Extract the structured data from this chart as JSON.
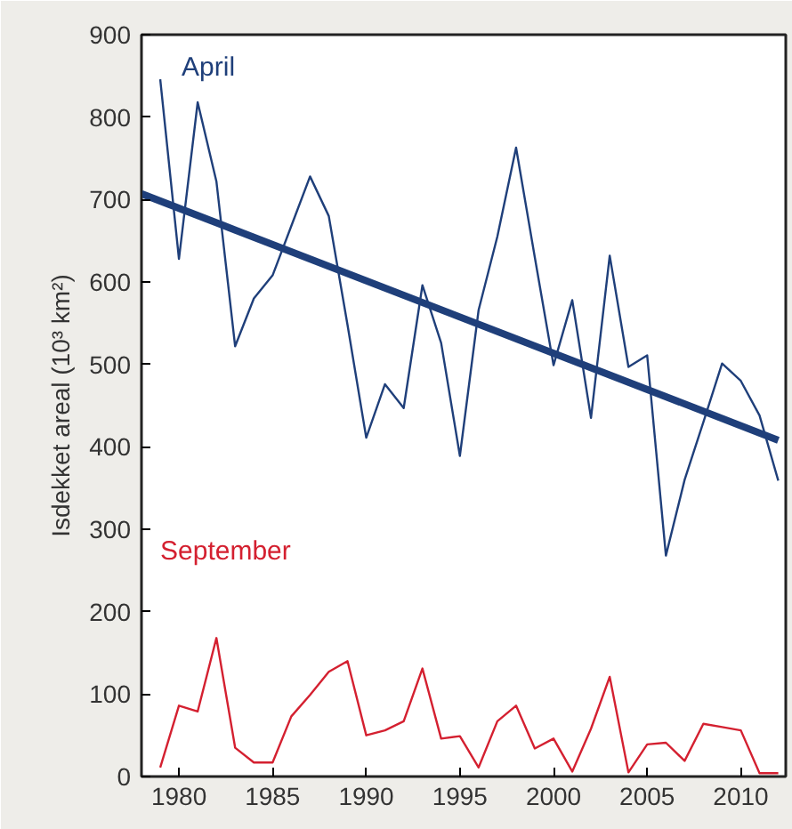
{
  "chart_data": {
    "type": "line",
    "ylabel": "Isdekket areal (10³ km²)",
    "xlim": [
      1978,
      2012.4
    ],
    "ylim": [
      0,
      900
    ],
    "xticks": [
      1980,
      1985,
      1990,
      1995,
      2000,
      2005,
      2010
    ],
    "yticks": [
      0,
      100,
      200,
      300,
      400,
      500,
      600,
      700,
      800,
      900
    ],
    "grid": false,
    "marker": "none",
    "x": [
      1979,
      1980,
      1981,
      1982,
      1983,
      1984,
      1985,
      1986,
      1987,
      1988,
      1989,
      1990,
      1991,
      1992,
      1993,
      1994,
      1995,
      1996,
      1997,
      1998,
      1999,
      2000,
      2001,
      2002,
      2003,
      2004,
      2005,
      2006,
      2007,
      2008,
      2009,
      2010,
      2011,
      2012
    ],
    "series": [
      {
        "name": "April",
        "color": "#1f3f7a",
        "values": [
          846,
          628,
          818,
          722,
          522,
          580,
          608,
          668,
          728,
          680,
          548,
          411,
          476,
          447,
          596,
          526,
          389,
          566,
          655,
          763,
          630,
          499,
          578,
          435,
          632,
          497,
          511,
          268,
          360,
          430,
          501,
          480,
          438,
          359
        ]
      },
      {
        "type": "line",
        "color": "#1f3f7a",
        "x": [
          1978,
          2012
        ],
        "values": [
          707,
          408
        ]
      },
      {
        "name": "September",
        "color": "#d42030",
        "values": [
          11,
          86,
          79,
          168,
          35,
          17,
          17,
          73,
          99,
          127,
          140,
          50,
          56,
          67,
          131,
          46,
          49,
          11,
          67,
          86,
          34,
          46,
          6,
          58,
          121,
          5,
          39,
          41,
          19,
          64,
          60,
          56,
          4,
          4
        ]
      }
    ]
  }
}
